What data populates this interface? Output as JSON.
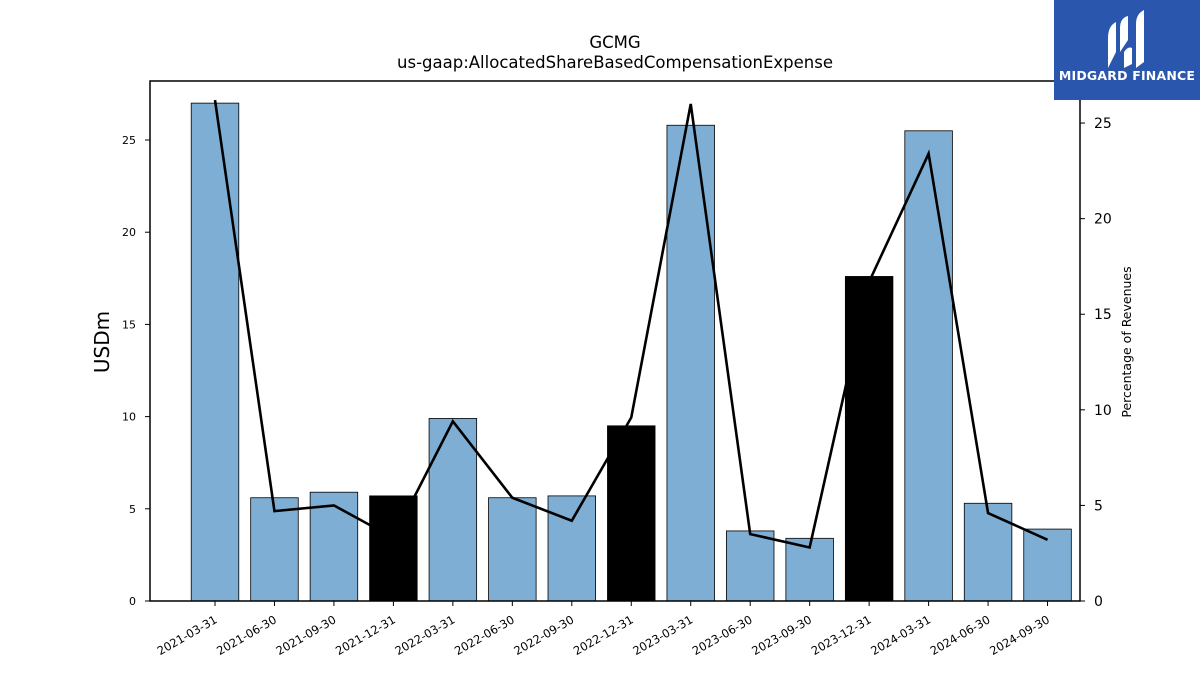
{
  "chart_data": {
    "type": "bar+line",
    "title": "GCMG",
    "subtitle": "us-gaap:AllocatedShareBasedCompensationExpense",
    "ylabel": "USDm",
    "y2label": "Percentage of Revenues",
    "ylim": [
      0,
      28.2
    ],
    "y2lim": [
      0,
      27.2
    ],
    "yticks": [
      0,
      5,
      10,
      15,
      20,
      25
    ],
    "y2ticks": [
      0,
      5,
      10,
      15,
      20,
      25
    ],
    "categories": [
      "2021-03-31",
      "2021-06-30",
      "2021-09-30",
      "2021-12-31",
      "2022-03-31",
      "2022-06-30",
      "2022-09-30",
      "2022-12-31",
      "2023-03-31",
      "2023-06-30",
      "2023-09-30",
      "2023-12-31",
      "2024-03-31",
      "2024-06-30",
      "2024-09-30"
    ],
    "bars": {
      "name": "USDm",
      "values": [
        27.0,
        5.6,
        5.9,
        5.7,
        9.9,
        5.6,
        5.7,
        9.5,
        25.8,
        3.8,
        3.4,
        17.6,
        25.5,
        5.3,
        3.9
      ],
      "highlighted": [
        false,
        false,
        false,
        true,
        false,
        false,
        false,
        true,
        false,
        false,
        false,
        true,
        false,
        false,
        false
      ]
    },
    "line": {
      "name": "Percentage of Revenues",
      "values": [
        26.2,
        4.7,
        5.0,
        3.3,
        9.4,
        5.4,
        4.2,
        9.6,
        26.0,
        3.5,
        2.8,
        16.7,
        23.4,
        4.6,
        3.2
      ]
    },
    "colors": {
      "bar": "#7eaed3",
      "bar_highlight": "#000000",
      "line": "#000000",
      "edge": "#000000"
    },
    "grid": false
  },
  "logo": {
    "text": "MIDGARD FINANCE",
    "background": "#2a56ad"
  }
}
